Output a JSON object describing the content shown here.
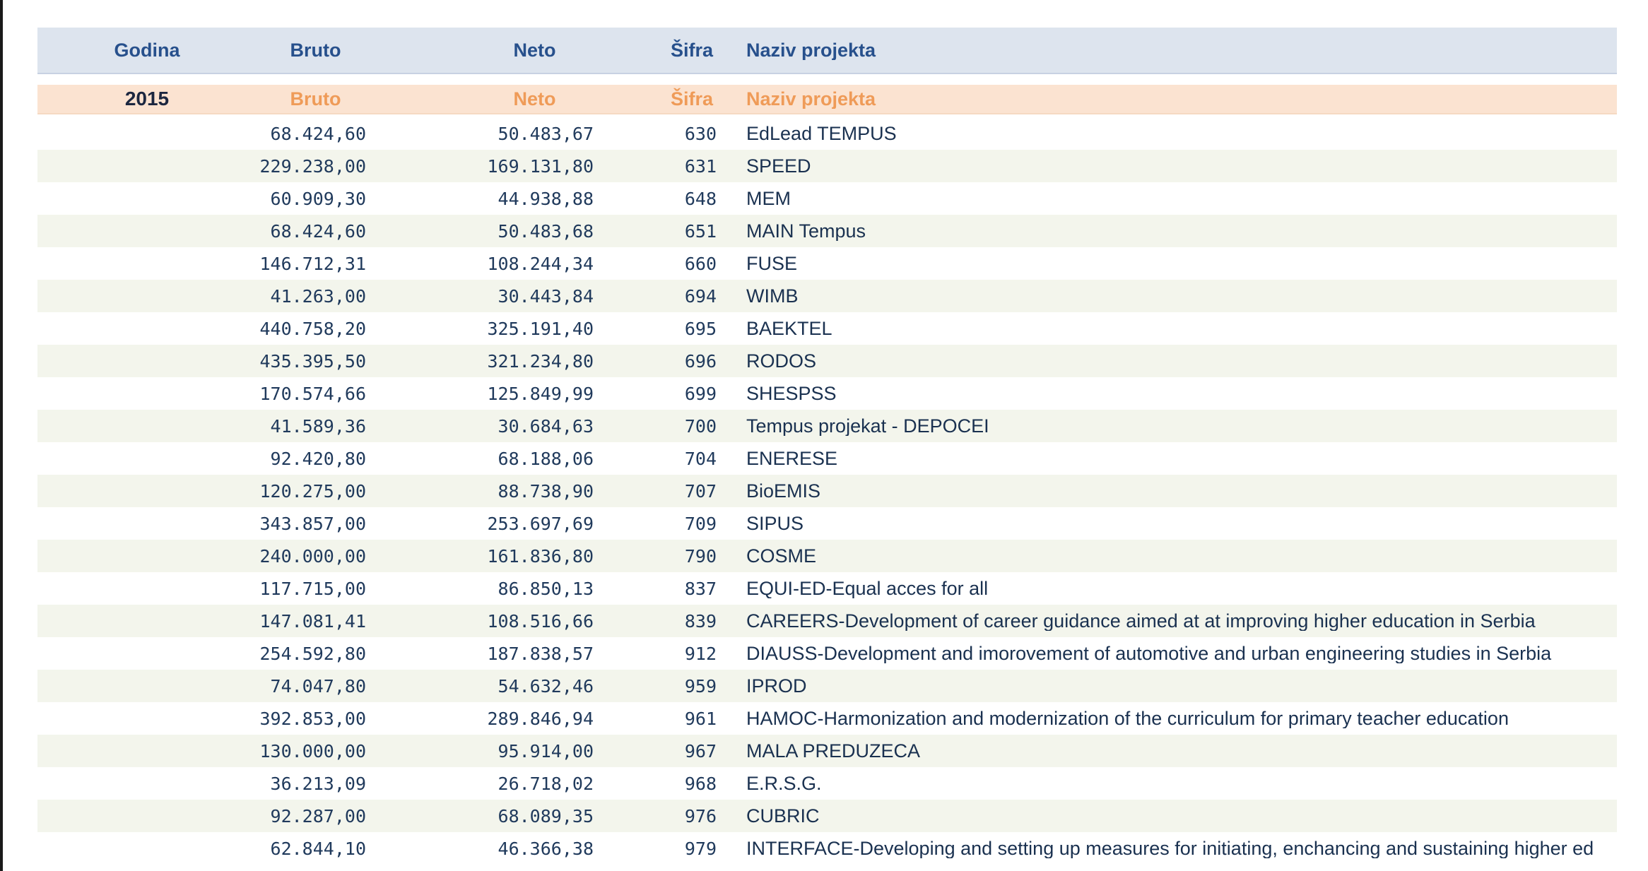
{
  "window": {
    "left_edge_bar": "window-edge"
  },
  "colors": {
    "left_bar": "#1a1a1a",
    "header_bg": "#dde4ee",
    "header_border": "#c7d1e2",
    "header_text": "#27508c",
    "year_bg": "#fbe3d1",
    "year_border": "#f5d9c2",
    "orange_text": "#ef9b58",
    "year_text": "#1c2740",
    "stripe_bg": "#f3f5ec",
    "num_text": "#203a5c",
    "name_text": "#1a3150",
    "page_bg": "#ffffff"
  },
  "table": {
    "columns": [
      {
        "key": "godina",
        "label": "Godina"
      },
      {
        "key": "bruto",
        "label": "Bruto"
      },
      {
        "key": "neto",
        "label": "Neto"
      },
      {
        "key": "sifra",
        "label": "Šifra"
      },
      {
        "key": "naziv",
        "label": "Naziv projekta"
      }
    ],
    "year_row": {
      "godina": "2015",
      "bruto": "Bruto",
      "neto": "Neto",
      "sifra": "Šifra",
      "naziv": "Naziv projekta"
    },
    "rows": [
      {
        "bruto": "68.424,60",
        "neto": "50.483,67",
        "sifra": "630",
        "naziv": "EdLead TEMPUS"
      },
      {
        "bruto": "229.238,00",
        "neto": "169.131,80",
        "sifra": "631",
        "naziv": "SPEED"
      },
      {
        "bruto": "60.909,30",
        "neto": "44.938,88",
        "sifra": "648",
        "naziv": "MEM"
      },
      {
        "bruto": "68.424,60",
        "neto": "50.483,68",
        "sifra": "651",
        "naziv": "MAIN Tempus"
      },
      {
        "bruto": "146.712,31",
        "neto": "108.244,34",
        "sifra": "660",
        "naziv": "FUSE"
      },
      {
        "bruto": "41.263,00",
        "neto": "30.443,84",
        "sifra": "694",
        "naziv": "WIMB"
      },
      {
        "bruto": "440.758,20",
        "neto": "325.191,40",
        "sifra": "695",
        "naziv": "BAEKTEL"
      },
      {
        "bruto": "435.395,50",
        "neto": "321.234,80",
        "sifra": "696",
        "naziv": "RODOS"
      },
      {
        "bruto": "170.574,66",
        "neto": "125.849,99",
        "sifra": "699",
        "naziv": "SHESPSS"
      },
      {
        "bruto": "41.589,36",
        "neto": "30.684,63",
        "sifra": "700",
        "naziv": "Tempus projekat - DEPOCEI"
      },
      {
        "bruto": "92.420,80",
        "neto": "68.188,06",
        "sifra": "704",
        "naziv": "ENERESE"
      },
      {
        "bruto": "120.275,00",
        "neto": "88.738,90",
        "sifra": "707",
        "naziv": "BioEMIS"
      },
      {
        "bruto": "343.857,00",
        "neto": "253.697,69",
        "sifra": "709",
        "naziv": "SIPUS"
      },
      {
        "bruto": "240.000,00",
        "neto": "161.836,80",
        "sifra": "790",
        "naziv": "COSME"
      },
      {
        "bruto": "117.715,00",
        "neto": "86.850,13",
        "sifra": "837",
        "naziv": "EQUI-ED-Equal acces for all"
      },
      {
        "bruto": "147.081,41",
        "neto": "108.516,66",
        "sifra": "839",
        "naziv": "CAREERS-Development of career guidance aimed at at improving higher education in Serbia"
      },
      {
        "bruto": "254.592,80",
        "neto": "187.838,57",
        "sifra": "912",
        "naziv": "DIAUSS-Development and imorovement of automotive and urban engineering studies in Serbia"
      },
      {
        "bruto": "74.047,80",
        "neto": "54.632,46",
        "sifra": "959",
        "naziv": "IPROD"
      },
      {
        "bruto": "392.853,00",
        "neto": "289.846,94",
        "sifra": "961",
        "naziv": "HAMOC-Harmonization and modernization of the curriculum for primary teacher education"
      },
      {
        "bruto": "130.000,00",
        "neto": "95.914,00",
        "sifra": "967",
        "naziv": "MALA PREDUZECA"
      },
      {
        "bruto": "36.213,09",
        "neto": "26.718,02",
        "sifra": "968",
        "naziv": "E.R.S.G."
      },
      {
        "bruto": "92.287,00",
        "neto": "68.089,35",
        "sifra": "976",
        "naziv": "CUBRIC"
      },
      {
        "bruto": "62.844,10",
        "neto": "46.366,38",
        "sifra": "979",
        "naziv": "INTERFACE-Developing and setting up measures for initiating, enchancing and sustaining higher ed"
      }
    ]
  }
}
